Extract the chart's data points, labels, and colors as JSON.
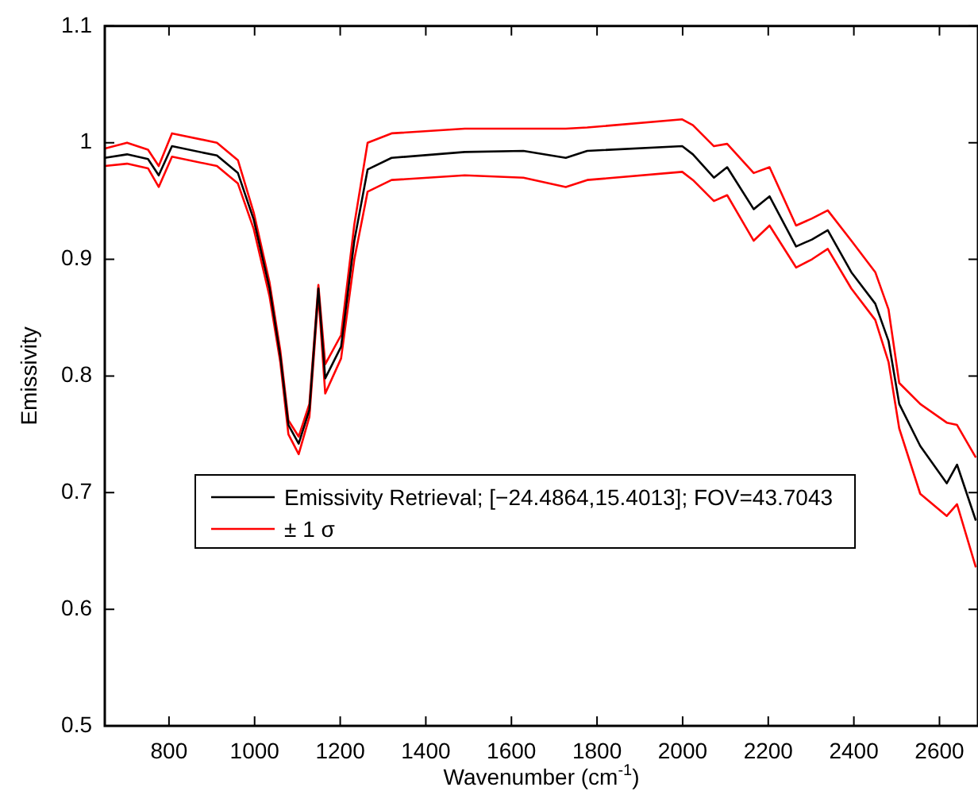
{
  "chart_data": {
    "type": "line",
    "xlabel": "Wavenumber (cm$^{-1}$)",
    "ylabel": "Emissivity",
    "x": [
      650,
      702,
      751,
      776,
      807,
      912,
      961,
      998,
      1035,
      1060,
      1079,
      1103,
      1128,
      1149,
      1165,
      1202,
      1233,
      1264,
      1320,
      1491,
      1628,
      1727,
      1777,
      1999,
      2024,
      2073,
      2104,
      2166,
      2203,
      2265,
      2302,
      2339,
      2394,
      2450,
      2481,
      2506,
      2555,
      2617,
      2641,
      2685
    ],
    "series": [
      {
        "name": "Emissivity Retrieval; [−24.4864,15.4013]; FOV=43.7043",
        "color": "#000000",
        "values": [
          0.987,
          0.99,
          0.986,
          0.972,
          0.997,
          0.989,
          0.974,
          0.934,
          0.875,
          0.817,
          0.758,
          0.742,
          0.771,
          0.875,
          0.798,
          0.825,
          0.916,
          0.977,
          0.987,
          0.992,
          0.993,
          0.987,
          0.993,
          0.997,
          0.99,
          0.97,
          0.979,
          0.943,
          0.954,
          0.911,
          0.917,
          0.925,
          0.889,
          0.862,
          0.83,
          0.776,
          0.74,
          0.708,
          0.724,
          0.676
        ]
      },
      {
        "name": "± 1 σ",
        "color": "#ff0000",
        "values": [
          0.995,
          1.0,
          0.994,
          0.98,
          1.008,
          1.0,
          0.985,
          0.94,
          0.88,
          0.822,
          0.762,
          0.748,
          0.776,
          0.878,
          0.81,
          0.835,
          0.93,
          1.0,
          1.008,
          1.012,
          1.012,
          1.012,
          1.013,
          1.02,
          1.015,
          0.997,
          0.999,
          0.974,
          0.979,
          0.929,
          0.935,
          0.942,
          0.916,
          0.889,
          0.857,
          0.794,
          0.776,
          0.76,
          0.758,
          0.73
        ]
      },
      {
        "color": "#ff0000",
        "values": [
          0.98,
          0.982,
          0.978,
          0.962,
          0.988,
          0.98,
          0.965,
          0.926,
          0.868,
          0.812,
          0.75,
          0.733,
          0.765,
          0.87,
          0.785,
          0.815,
          0.9,
          0.958,
          0.968,
          0.972,
          0.97,
          0.962,
          0.968,
          0.975,
          0.968,
          0.95,
          0.955,
          0.916,
          0.929,
          0.893,
          0.9,
          0.909,
          0.875,
          0.848,
          0.812,
          0.755,
          0.699,
          0.68,
          0.69,
          0.636
        ]
      }
    ],
    "xlim": [
      650,
      2690
    ],
    "xticks": [
      800,
      1000,
      1200,
      1400,
      1600,
      1800,
      2000,
      2200,
      2400,
      2600
    ],
    "ylim": [
      0.5,
      1.1
    ],
    "yticks": [
      0.5,
      0.6,
      0.7,
      0.8,
      0.9,
      1,
      1.1
    ],
    "legend": "bottom left",
    "grid": false,
    "marker": "none",
    "line_style": "solid"
  }
}
